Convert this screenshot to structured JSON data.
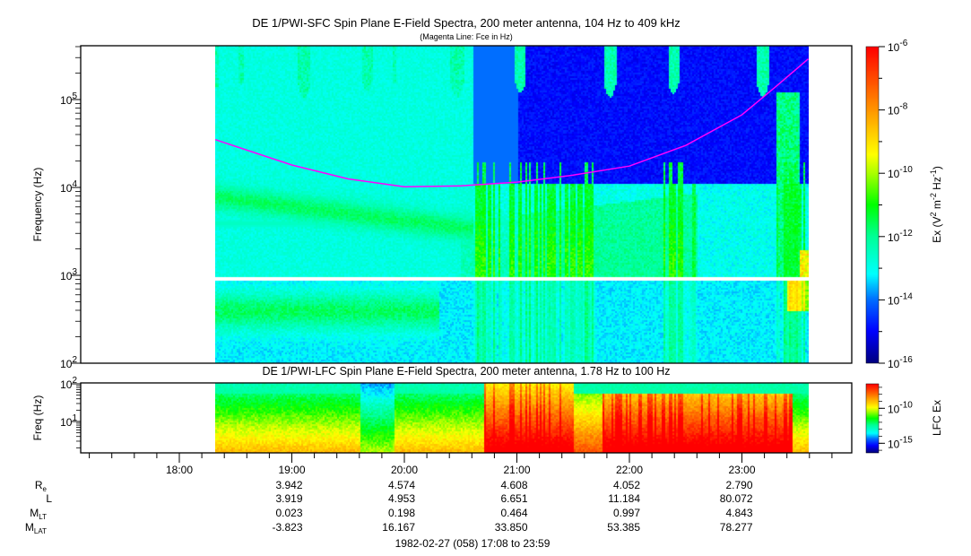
{
  "chart_data": [
    {
      "type": "heatmap",
      "title": "DE 1/PWI-SFC  Spin Plane E-Field Spectra, 200 meter antenna, 104 Hz to 409 kHz",
      "subtitle": "(Magenta Line: Fce in Hz)",
      "ylabel": "Frequency (Hz)",
      "y_scale": "log",
      "ylim": [
        100,
        409000
      ],
      "y_ticks": [
        {
          "value": 100000,
          "base": "10",
          "exp": "5"
        },
        {
          "value": 10000,
          "base": "10",
          "exp": "4"
        },
        {
          "value": 1000,
          "base": "10",
          "exp": "3"
        },
        {
          "value": 100,
          "base": "10",
          "exp": "2"
        }
      ],
      "data_time_range_hours": [
        18.32,
        23.59
      ],
      "colorbar": {
        "label_main": "Ex (V",
        "label_parts": [
          "2",
          " m",
          "-2",
          " Hz",
          "-1",
          ")"
        ],
        "scale": "log",
        "range": [
          1e-16,
          1e-06
        ],
        "ticks": [
          {
            "value": 1e-06,
            "base": "10",
            "exp": "-6"
          },
          {
            "value": 1e-08,
            "base": "10",
            "exp": "-8"
          },
          {
            "value": 1e-10,
            "base": "10",
            "exp": "-10"
          },
          {
            "value": 1e-12,
            "base": "10",
            "exp": "-12"
          },
          {
            "value": 1e-14,
            "base": "10",
            "exp": "-14"
          },
          {
            "value": 1e-16,
            "base": "10",
            "exp": "-16"
          }
        ]
      },
      "line_series": {
        "color": "#ff00ff",
        "x_hours": [
          18.32,
          19.0,
          19.5,
          20.0,
          20.5,
          21.0,
          21.5,
          22.0,
          22.5,
          23.0,
          23.3,
          23.59
        ],
        "y_hz": [
          35000,
          18000,
          12500,
          10200,
          10400,
          11500,
          13800,
          17500,
          30000,
          67000,
          140000,
          290000
        ]
      }
    },
    {
      "type": "heatmap",
      "title": "DE 1/PWI-LFC  Spin Plane E-Field Spectra, 200 meter antenna, 1.78 Hz to 100 Hz",
      "ylabel": "Freq (Hz)",
      "y_scale": "log",
      "ylim": [
        1.78,
        100
      ],
      "y_ticks": [
        {
          "value": 100,
          "base": "10",
          "exp": "2"
        },
        {
          "value": 10,
          "base": "10",
          "exp": "1"
        }
      ],
      "data_time_range_hours": [
        18.32,
        23.59
      ],
      "colorbar": {
        "label": "LFC Ex",
        "scale": "log",
        "range": [
          1e-17,
          1e-06
        ],
        "ticks": [
          {
            "value": 1e-10,
            "base": "10",
            "exp": "-10"
          },
          {
            "value": 1e-15,
            "base": "10",
            "exp": "-15"
          }
        ]
      }
    }
  ],
  "x_axis": {
    "ticks": [
      "18:00",
      "19:00",
      "20:00",
      "21:00",
      "22:00",
      "23:00"
    ],
    "tick_hours": [
      18,
      19,
      20,
      21,
      22,
      23
    ],
    "range_hours": [
      17.133,
      23.983
    ]
  },
  "ephemeris": {
    "rows": [
      {
        "label": "R",
        "sub": "e",
        "values": [
          "3.942",
          "4.574",
          "4.608",
          "4.052",
          "2.790"
        ]
      },
      {
        "label": "L",
        "sub": "",
        "values": [
          "3.919",
          "4.953",
          "6.651",
          "11.184",
          "80.072"
        ]
      },
      {
        "label": "M",
        "sub": "LT",
        "values": [
          "0.023",
          "0.198",
          "0.464",
          "0.997",
          "4.843"
        ]
      },
      {
        "label": "M",
        "sub": "LAT",
        "values": [
          "-3.823",
          "16.167",
          "33.850",
          "53.385",
          "78.277"
        ]
      }
    ],
    "footer": "1982-02-27 (058) 17:08 to 23:59"
  },
  "colors": {
    "fce_line": "#ff00ff",
    "frame": "#000000"
  }
}
